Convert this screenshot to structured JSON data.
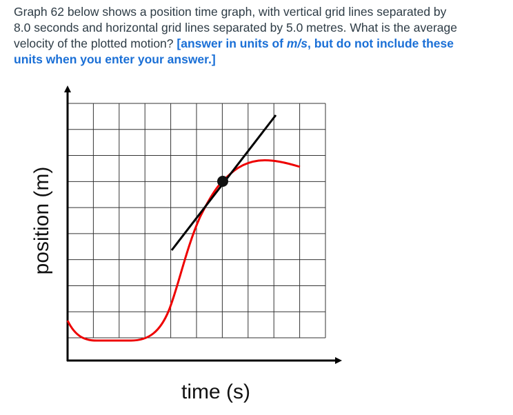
{
  "question": {
    "lines": [
      "Graph 62 below shows a position time graph, with vertical grid lines separated by",
      "8.0 seconds and horizontal grid lines separated by 5.0 metres.  What is the average",
      "velocity of the plotted motion? "
    ],
    "instruction": {
      "before": "[answer in units of ",
      "units": "m/s",
      "after_1": ", but do not include these",
      "after_2": "units when you enter your answer.]"
    }
  },
  "graph": {
    "y_label": "position (m)",
    "x_label": "time (s)"
  }
}
